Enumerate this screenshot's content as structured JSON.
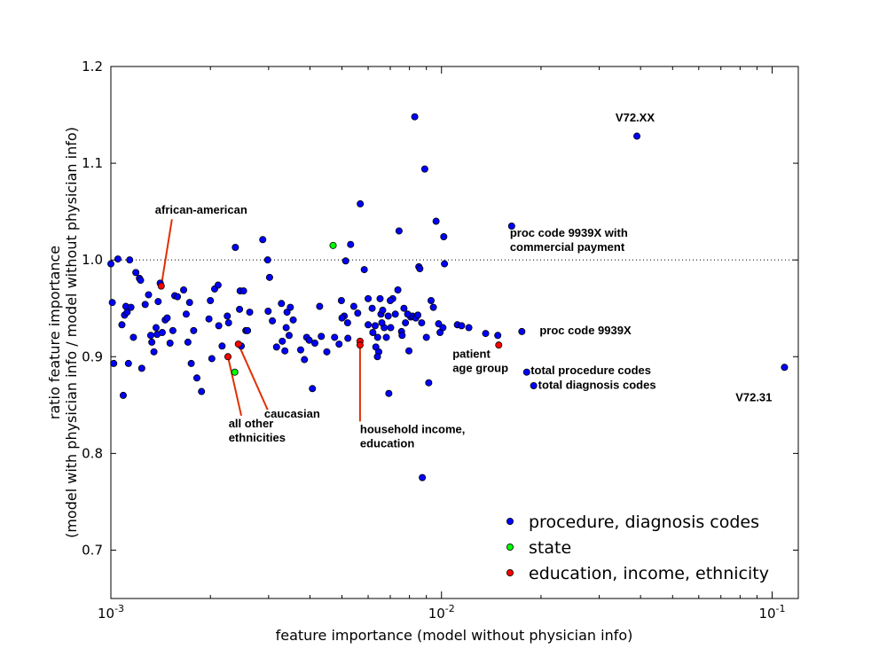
{
  "chart_data": {
    "type": "scatter",
    "title": "",
    "xlabel": "feature importance (model without physician info)",
    "ylabel_line1": "ratio feature importance",
    "ylabel_line2": "(model with physician info / model without physician info)",
    "x_scale": "log",
    "xlim": [
      0.001,
      0.12
    ],
    "ylim": [
      0.65,
      1.2
    ],
    "x_ticks": [
      {
        "value": 0.001,
        "base": "10",
        "exp": "-3"
      },
      {
        "value": 0.01,
        "base": "10",
        "exp": "-2"
      },
      {
        "value": 0.1,
        "base": "10",
        "exp": "-1"
      }
    ],
    "y_ticks": [
      {
        "value": 0.7,
        "label": "0.7"
      },
      {
        "value": 0.8,
        "label": "0.8"
      },
      {
        "value": 0.9,
        "label": "0.9"
      },
      {
        "value": 1.0,
        "label": "1.0"
      },
      {
        "value": 1.1,
        "label": "1.1"
      },
      {
        "value": 1.2,
        "label": "1.2"
      }
    ],
    "reference_line": {
      "y": 1.0,
      "style": "dotted"
    },
    "grid": false,
    "legend_position": "bottom-right",
    "series": [
      {
        "name": "procedure, diagnosis codes",
        "color": "#0000ff",
        "points": [
          [
            0.001,
            0.996
          ],
          [
            0.00101,
            0.956
          ],
          [
            0.00102,
            0.893
          ],
          [
            0.00105,
            1.001
          ],
          [
            0.00108,
            0.933
          ],
          [
            0.00109,
            0.86
          ],
          [
            0.0011,
            0.943
          ],
          [
            0.00111,
            0.952
          ],
          [
            0.00112,
            0.946
          ],
          [
            0.00113,
            0.893
          ],
          [
            0.00114,
            1.0
          ],
          [
            0.00115,
            0.951
          ],
          [
            0.00117,
            0.92
          ],
          [
            0.00119,
            0.987
          ],
          [
            0.00122,
            0.981
          ],
          [
            0.00123,
            0.979
          ],
          [
            0.00124,
            0.888
          ],
          [
            0.00127,
            0.954
          ],
          [
            0.0013,
            0.964
          ],
          [
            0.00132,
            0.922
          ],
          [
            0.00133,
            0.915
          ],
          [
            0.00135,
            0.905
          ],
          [
            0.00137,
            0.93
          ],
          [
            0.00138,
            0.923
          ],
          [
            0.00139,
            0.957
          ],
          [
            0.00141,
            0.976
          ],
          [
            0.00143,
            0.925
          ],
          [
            0.00146,
            0.938
          ],
          [
            0.00148,
            0.94
          ],
          [
            0.00151,
            0.914
          ],
          [
            0.00154,
            0.927
          ],
          [
            0.00156,
            0.963
          ],
          [
            0.00159,
            0.962
          ],
          [
            0.00166,
            0.969
          ],
          [
            0.00169,
            0.944
          ],
          [
            0.00171,
            0.915
          ],
          [
            0.00173,
            0.956
          ],
          [
            0.00175,
            0.893
          ],
          [
            0.00178,
            0.927
          ],
          [
            0.00182,
            0.878
          ],
          [
            0.00188,
            0.864
          ],
          [
            0.00198,
            0.939
          ],
          [
            0.002,
            0.958
          ],
          [
            0.00202,
            0.898
          ],
          [
            0.00206,
            0.97
          ],
          [
            0.00211,
            0.974
          ],
          [
            0.00212,
            0.932
          ],
          [
            0.00217,
            0.911
          ],
          [
            0.00225,
            0.942
          ],
          [
            0.00227,
            0.935
          ],
          [
            0.00238,
            1.013
          ],
          [
            0.00245,
            0.949
          ],
          [
            0.00246,
            0.968
          ],
          [
            0.00248,
            0.911
          ],
          [
            0.00252,
            0.968
          ],
          [
            0.00256,
            0.927
          ],
          [
            0.00259,
            0.927
          ],
          [
            0.00263,
            0.946
          ],
          [
            0.00288,
            1.021
          ],
          [
            0.00298,
            1.0
          ],
          [
            0.00299,
            0.947
          ],
          [
            0.00302,
            0.982
          ],
          [
            0.00308,
            0.937
          ],
          [
            0.00317,
            0.91
          ],
          [
            0.00328,
            0.955
          ],
          [
            0.0033,
            0.916
          ],
          [
            0.00336,
            0.906
          ],
          [
            0.00339,
            0.93
          ],
          [
            0.00341,
            0.946
          ],
          [
            0.00346,
            0.922
          ],
          [
            0.00349,
            0.951
          ],
          [
            0.00356,
            0.938
          ],
          [
            0.00375,
            0.907
          ],
          [
            0.00385,
            0.897
          ],
          [
            0.00391,
            0.92
          ],
          [
            0.00398,
            0.917
          ],
          [
            0.00407,
            0.867
          ],
          [
            0.00414,
            0.914
          ],
          [
            0.00428,
            0.952
          ],
          [
            0.00433,
            0.921
          ],
          [
            0.0045,
            0.905
          ],
          [
            0.00475,
            0.92
          ],
          [
            0.0049,
            0.913
          ],
          [
            0.00498,
            0.958
          ],
          [
            0.00508,
            0.942
          ],
          [
            0.00513,
            0.999
          ],
          [
            0.00521,
            0.919
          ],
          [
            0.00531,
            1.016
          ],
          [
            0.00543,
            0.952
          ],
          [
            0.00558,
            0.945
          ],
          [
            0.00568,
            1.058
          ],
          [
            0.00584,
            0.99
          ],
          [
            0.006,
            0.933
          ],
          [
            0.00617,
            0.95
          ],
          [
            0.0063,
            0.932
          ],
          [
            0.00633,
            0.91
          ],
          [
            0.00641,
            0.92
          ],
          [
            0.00646,
            0.905
          ],
          [
            0.00652,
            0.96
          ],
          [
            0.00656,
            0.944
          ],
          [
            0.00664,
            0.948
          ],
          [
            0.00671,
            0.93
          ],
          [
            0.00681,
            0.92
          ],
          [
            0.00693,
            0.862
          ],
          [
            0.00702,
            0.93
          ],
          [
            0.00712,
            0.96
          ],
          [
            0.00725,
            0.944
          ],
          [
            0.00738,
            0.969
          ],
          [
            0.00744,
            1.03
          ],
          [
            0.00757,
            0.926
          ],
          [
            0.00778,
            0.935
          ],
          [
            0.00797,
            0.906
          ],
          [
            0.00807,
            0.941
          ],
          [
            0.00817,
            0.942
          ],
          [
            0.0083,
            1.148
          ],
          [
            0.00836,
            0.94
          ],
          [
            0.00848,
            0.943
          ],
          [
            0.00854,
            0.993
          ],
          [
            0.0086,
            0.991
          ],
          [
            0.00871,
            0.935
          ],
          [
            0.00875,
            0.775
          ],
          [
            0.0089,
            1.094
          ],
          [
            0.009,
            0.92
          ],
          [
            0.00915,
            0.873
          ],
          [
            0.0093,
            0.958
          ],
          [
            0.00945,
            0.951
          ],
          [
            0.00963,
            1.04
          ],
          [
            0.0099,
            0.925
          ],
          [
            0.0101,
            0.93
          ],
          [
            0.01016,
            1.024
          ],
          [
            0.01021,
            0.996
          ],
          [
            0.01117,
            0.933
          ],
          [
            0.0115,
            0.932
          ],
          [
            0.0121,
            0.93
          ],
          [
            0.0136,
            0.924
          ],
          [
            0.0148,
            0.922
          ],
          [
            0.0163,
            1.035
          ],
          [
            0.0175,
            0.926
          ],
          [
            0.0181,
            0.884
          ],
          [
            0.019,
            0.87
          ],
          [
            0.039,
            1.128
          ],
          [
            0.109,
            0.889
          ],
          [
            0.005,
            0.94
          ],
          [
            0.0052,
            0.935
          ],
          [
            0.006,
            0.96
          ],
          [
            0.0062,
            0.925
          ],
          [
            0.0066,
            0.935
          ],
          [
            0.0069,
            0.942
          ],
          [
            0.007,
            0.958
          ],
          [
            0.0076,
            0.922
          ],
          [
            0.0077,
            0.95
          ],
          [
            0.0079,
            0.944
          ],
          [
            0.0098,
            0.934
          ],
          [
            0.0064,
            0.9
          ]
        ]
      },
      {
        "name": "state",
        "color": "#00ff00",
        "points": [
          [
            0.0047,
            1.015
          ],
          [
            0.00237,
            0.884
          ]
        ]
      },
      {
        "name": "education, income, ethnicity",
        "color": "#ff0000",
        "points": [
          [
            0.00142,
            0.973
          ],
          [
            0.00226,
            0.9
          ],
          [
            0.00243,
            0.913
          ],
          [
            0.00567,
            0.916
          ],
          [
            0.00567,
            0.912
          ],
          [
            0.0149,
            0.912
          ]
        ]
      }
    ],
    "annotations": [
      {
        "lines": [
          "V72.XX"
        ],
        "x": 0.0385,
        "y": 1.143,
        "anchor": "middle"
      },
      {
        "lines": [
          "proc code 9939X with",
          "commercial payment"
        ],
        "x": 0.0161,
        "y": 1.024,
        "anchor": "start"
      },
      {
        "lines": [
          "proc code 9939X"
        ],
        "x": 0.0198,
        "y": 0.923,
        "anchor": "start"
      },
      {
        "lines": [
          "total procedure codes"
        ],
        "x": 0.0186,
        "y": 0.882,
        "anchor": "start"
      },
      {
        "lines": [
          "total diagnosis codes"
        ],
        "x": 0.0196,
        "y": 0.867,
        "anchor": "start"
      },
      {
        "lines": [
          "V72.31"
        ],
        "x": 0.088,
        "y": 0.854,
        "anchor": "middle"
      },
      {
        "lines": [
          "patient",
          "age group"
        ],
        "x": 0.0108,
        "y": 0.899,
        "anchor": "start"
      },
      {
        "lines": [
          "african-american"
        ],
        "x": 0.00136,
        "y": 1.048,
        "anchor": "start"
      },
      {
        "lines": [
          "caucasian"
        ],
        "x": 0.00291,
        "y": 0.837,
        "anchor": "start"
      },
      {
        "lines": [
          "all other",
          "ethnicities"
        ],
        "x": 0.00227,
        "y": 0.827,
        "anchor": "start"
      },
      {
        "lines": [
          "household income,",
          "education"
        ],
        "x": 0.00567,
        "y": 0.821,
        "anchor": "start"
      }
    ],
    "pointers": [
      {
        "from": [
          0.00153,
          1.042
        ],
        "to": [
          0.00142,
          0.973
        ]
      },
      {
        "from": [
          0.00298,
          0.845
        ],
        "to": [
          0.00243,
          0.913
        ]
      },
      {
        "from": [
          0.00248,
          0.839
        ],
        "to": [
          0.00226,
          0.9
        ]
      },
      {
        "from": [
          0.00567,
          0.833
        ],
        "to": [
          0.00567,
          0.914
        ]
      }
    ]
  }
}
